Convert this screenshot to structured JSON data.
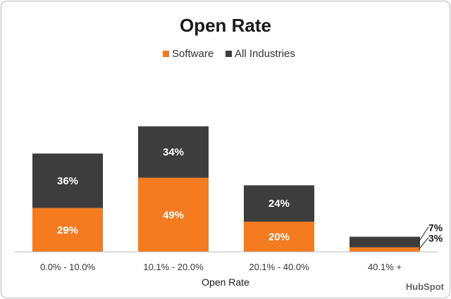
{
  "chart_data": {
    "type": "bar",
    "stacked": true,
    "title": "Open Rate",
    "xlabel": "Open Rate",
    "ylabel": "",
    "categories": [
      "0.0% - 10.0%",
      "10.1% - 20.0%",
      "20.1% - 40.0%",
      "40.1% +"
    ],
    "series": [
      {
        "name": "Software",
        "color": "#f47b20",
        "values": [
          29,
          49,
          20,
          3
        ],
        "labels": [
          "29%",
          "49%",
          "20%",
          "3%"
        ]
      },
      {
        "name": "All Industries",
        "color": "#3d3d3d",
        "values": [
          36,
          34,
          24,
          7
        ],
        "labels": [
          "36%",
          "34%",
          "24%",
          "7%"
        ]
      }
    ],
    "ylim": [
      0,
      100
    ],
    "grid": false,
    "legend_position": "top"
  },
  "branding": {
    "logo_text": "HubSpot"
  }
}
